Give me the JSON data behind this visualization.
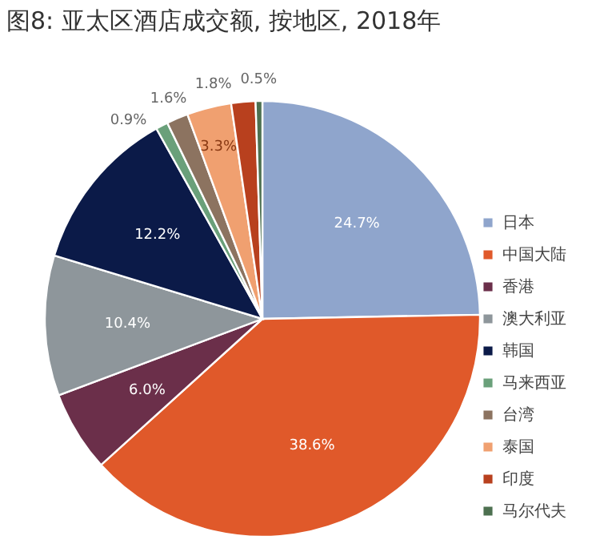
{
  "chart_data": {
    "type": "pie",
    "title": "图8: 亚太区酒店成交额, 按地区, 2018年",
    "categories": [
      "日本",
      "中国大陆",
      "香港",
      "澳大利亚",
      "韩国",
      "马来西亚",
      "台湾",
      "泰国",
      "印度",
      "马尔代夫"
    ],
    "values": [
      24.7,
      38.6,
      6.0,
      10.4,
      12.2,
      0.9,
      1.6,
      3.3,
      1.8,
      0.5
    ],
    "value_labels": [
      "24.7%",
      "38.6%",
      "6.0%",
      "10.4%",
      "12.2%",
      "0.9%",
      "1.6%",
      "3.3%",
      "1.8%",
      "0.5%"
    ],
    "colors": [
      "#8fa5cc",
      "#e0592a",
      "#6b2f4a",
      "#8e969b",
      "#0b1a48",
      "#6aa07a",
      "#8c7360",
      "#f0a070",
      "#b8401e",
      "#4d7050"
    ],
    "legend": "right"
  }
}
